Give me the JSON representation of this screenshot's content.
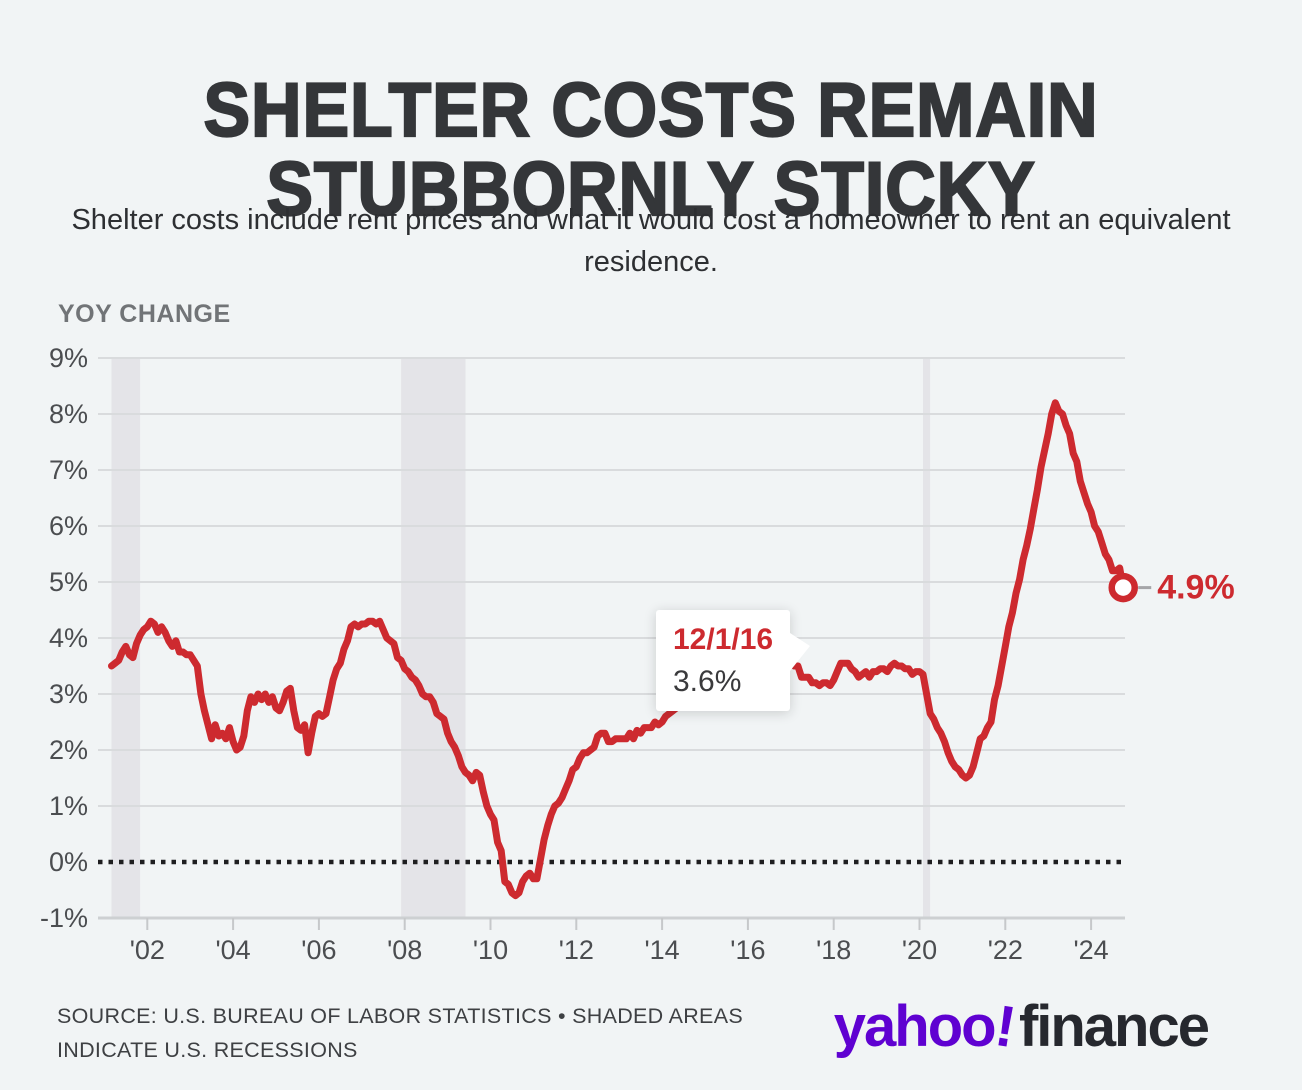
{
  "header": {
    "title_line1": "SHELTER COSTS REMAIN",
    "title_line2": "STUBBORNLY STICKY",
    "subtitle": "Shelter costs include rent prices and what it would cost a homeowner to rent an equivalent residence."
  },
  "chart_data": {
    "type": "line",
    "title": "Shelter costs year-over-year change",
    "ylabel": "YOY CHANGE",
    "unit": "%",
    "frequency": "monthly",
    "x_start": "2001-03",
    "x_end": "2024-10",
    "ylim": [
      -1,
      9
    ],
    "y_ticks": [
      "9%",
      "8%",
      "7%",
      "6%",
      "5%",
      "4%",
      "3%",
      "2%",
      "1%",
      "0%",
      "-1%"
    ],
    "x_ticks": [
      "'02",
      "'04",
      "'06",
      "'08",
      "'10",
      "'12",
      "'14",
      "'16",
      "'18",
      "'20",
      "'22",
      "'24"
    ],
    "zero_line_dotted": true,
    "grid": true,
    "series": [
      {
        "name": "Shelter CPI YoY change",
        "color": "#cd2a2f",
        "values": [
          3.5,
          3.55,
          3.6,
          3.75,
          3.85,
          3.7,
          3.65,
          3.9,
          4.05,
          4.15,
          4.2,
          4.3,
          4.25,
          4.1,
          4.2,
          4.1,
          3.95,
          3.85,
          3.95,
          3.75,
          3.75,
          3.7,
          3.7,
          3.6,
          3.5,
          3.0,
          2.7,
          2.45,
          2.2,
          2.45,
          2.25,
          2.3,
          2.2,
          2.4,
          2.15,
          2.0,
          2.05,
          2.25,
          2.7,
          2.95,
          2.85,
          3.0,
          2.9,
          3.0,
          2.85,
          2.95,
          2.75,
          2.7,
          2.85,
          3.05,
          3.1,
          2.7,
          2.4,
          2.35,
          2.45,
          1.95,
          2.3,
          2.6,
          2.65,
          2.6,
          2.65,
          2.95,
          3.25,
          3.45,
          3.55,
          3.8,
          3.95,
          4.2,
          4.25,
          4.2,
          4.25,
          4.25,
          4.3,
          4.3,
          4.25,
          4.3,
          4.15,
          4.0,
          3.95,
          3.9,
          3.65,
          3.6,
          3.45,
          3.4,
          3.3,
          3.25,
          3.15,
          3.0,
          2.95,
          2.95,
          2.85,
          2.65,
          2.6,
          2.55,
          2.3,
          2.15,
          2.05,
          1.9,
          1.7,
          1.6,
          1.55,
          1.45,
          1.6,
          1.55,
          1.25,
          1.0,
          0.85,
          0.75,
          0.35,
          0.2,
          -0.35,
          -0.4,
          -0.55,
          -0.6,
          -0.55,
          -0.35,
          -0.25,
          -0.2,
          -0.3,
          -0.3,
          0.05,
          0.4,
          0.65,
          0.85,
          1.0,
          1.05,
          1.15,
          1.3,
          1.45,
          1.65,
          1.7,
          1.85,
          1.95,
          1.95,
          2.0,
          2.05,
          2.25,
          2.3,
          2.3,
          2.15,
          2.15,
          2.2,
          2.2,
          2.2,
          2.2,
          2.3,
          2.2,
          2.35,
          2.3,
          2.4,
          2.4,
          2.4,
          2.5,
          2.45,
          2.5,
          2.6,
          2.65,
          2.7,
          2.75,
          2.8,
          2.85,
          2.9,
          2.95,
          3.0,
          3.0,
          3.05,
          3.05,
          3.1,
          3.1,
          3.15,
          3.2,
          3.15,
          3.2,
          3.25,
          3.3,
          3.3,
          3.25,
          3.3,
          3.35,
          3.4,
          3.4,
          3.45,
          3.5,
          3.55,
          3.5,
          3.55,
          3.6,
          3.65,
          3.6,
          3.6,
          3.55,
          3.5,
          3.5,
          3.3,
          3.3,
          3.3,
          3.2,
          3.2,
          3.15,
          3.2,
          3.2,
          3.15,
          3.25,
          3.4,
          3.55,
          3.55,
          3.55,
          3.45,
          3.4,
          3.3,
          3.35,
          3.4,
          3.3,
          3.4,
          3.4,
          3.45,
          3.45,
          3.4,
          3.5,
          3.55,
          3.5,
          3.5,
          3.45,
          3.45,
          3.35,
          3.4,
          3.4,
          3.35,
          3.0,
          2.65,
          2.55,
          2.4,
          2.3,
          2.15,
          1.95,
          1.8,
          1.7,
          1.65,
          1.55,
          1.5,
          1.55,
          1.7,
          1.95,
          2.2,
          2.25,
          2.4,
          2.5,
          2.9,
          3.15,
          3.5,
          3.85,
          4.2,
          4.45,
          4.8,
          5.05,
          5.4,
          5.65,
          5.95,
          6.3,
          6.65,
          7.05,
          7.35,
          7.65,
          8.0,
          8.2,
          8.05,
          8.0,
          7.8,
          7.65,
          7.3,
          7.15,
          6.8,
          6.6,
          6.4,
          6.25,
          6.0,
          5.9,
          5.7,
          5.5,
          5.4,
          5.2,
          5.2,
          5.25,
          4.9
        ]
      }
    ],
    "recessions": [
      {
        "start": "2001-03",
        "end": "2001-11"
      },
      {
        "start": "2007-12",
        "end": "2009-06"
      },
      {
        "start": "2020-02",
        "end": "2020-04"
      }
    ],
    "tooltip": {
      "date": "12/1/16",
      "value": "3.6%"
    },
    "end_label": "4.9%",
    "colors": {
      "line": "#cd2a2f",
      "recession_shading": "#e4e4e8",
      "grid": "#d9dbdd",
      "axis_baseline": "#cdd0d2",
      "zero_line": "#1e1e20",
      "tick_text": "#4b4d50",
      "background": "#f1f4f5"
    }
  },
  "footer": {
    "source_line1": "SOURCE: U.S. BUREAU OF LABOR STATISTICS • SHADED AREAS",
    "source_line2": "INDICATE U.S. RECESSIONS",
    "brand": {
      "yahoo": "yahoo",
      "bang": "!",
      "finance": "finance",
      "yahoo_color": "#5f01d1",
      "finance_color": "#26282e"
    }
  }
}
